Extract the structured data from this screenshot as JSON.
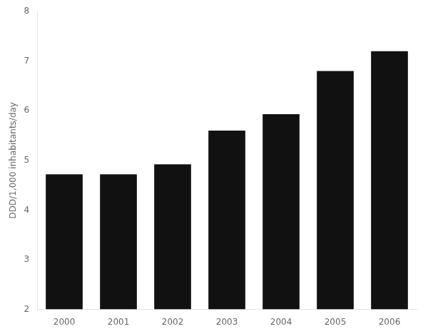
{
  "chart_data": {
    "type": "bar",
    "categories": [
      "2000",
      "2001",
      "2002",
      "2003",
      "2004",
      "2005",
      "2006"
    ],
    "values": [
      4.72,
      4.72,
      4.92,
      5.6,
      5.93,
      6.8,
      7.2
    ],
    "color": "#111111",
    "ylabel": "DDD/1,000 inhabitants/day",
    "ylim": [
      2,
      8
    ],
    "yticks": [
      2,
      3,
      4,
      5,
      6,
      7,
      8
    ],
    "grid": false
  }
}
